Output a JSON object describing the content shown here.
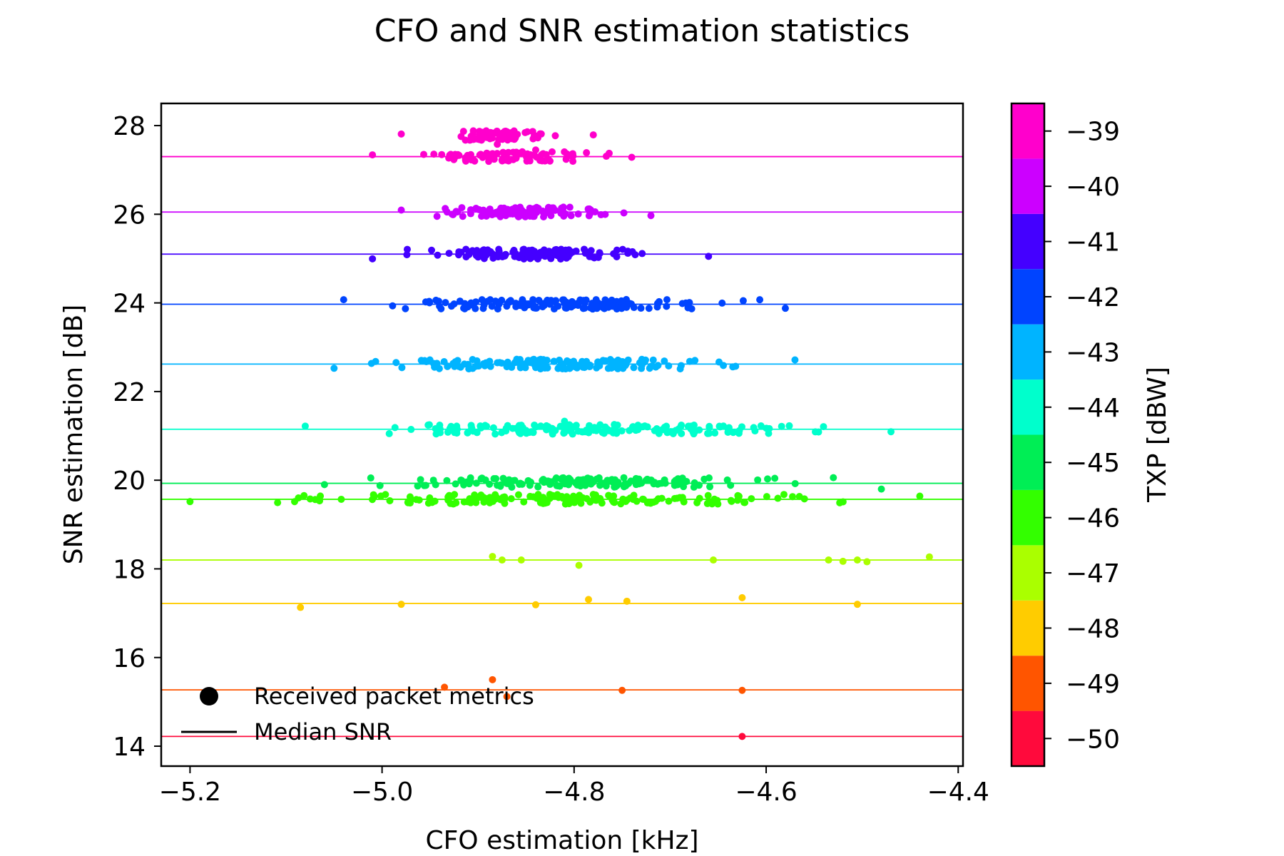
{
  "chart_data": {
    "type": "scatter",
    "title": "CFO and SNR estimation statistics",
    "xlabel": "CFO estimation [kHz]",
    "ylabel": "SNR estimation [dB]",
    "xlim": [
      -5.23,
      -4.395
    ],
    "ylim": [
      13.55,
      28.5
    ],
    "xticks": [
      -5.2,
      -5.0,
      -4.8,
      -4.6,
      -4.4
    ],
    "xtick_labels": [
      "−5.2",
      "−5.0",
      "−4.8",
      "−4.6",
      "−4.4"
    ],
    "yticks": [
      14,
      16,
      18,
      20,
      22,
      24,
      26,
      28
    ],
    "ytick_labels": [
      "14",
      "16",
      "18",
      "20",
      "22",
      "24",
      "26",
      "28"
    ],
    "legend": {
      "position": "lower-left",
      "entries": [
        "Received packet metrics",
        "Median SNR"
      ]
    },
    "colorbar": {
      "label": "TXP [dBW]",
      "range": [
        -50.5,
        -38.5
      ],
      "ticks": [
        -39,
        -40,
        -41,
        -42,
        -43,
        -44,
        -45,
        -46,
        -47,
        -48,
        -49,
        -50
      ],
      "tick_labels": [
        "−39",
        "−40",
        "−41",
        "−42",
        "−43",
        "−44",
        "−45",
        "−46",
        "−47",
        "−48",
        "−49",
        "−50"
      ],
      "levels": [
        {
          "txp": -50,
          "color": "#ff0a3c"
        },
        {
          "txp": -49,
          "color": "#ff5500"
        },
        {
          "txp": -48,
          "color": "#ffcc00"
        },
        {
          "txp": -47,
          "color": "#aaff00"
        },
        {
          "txp": -46,
          "color": "#33ff00"
        },
        {
          "txp": -45,
          "color": "#00ee55"
        },
        {
          "txp": -44,
          "color": "#00ffcc"
        },
        {
          "txp": -43,
          "color": "#00b4ff"
        },
        {
          "txp": -42,
          "color": "#0044ff"
        },
        {
          "txp": -41,
          "color": "#4400ff"
        },
        {
          "txp": -40,
          "color": "#cc00ff"
        },
        {
          "txp": -39,
          "color": "#ff00cc"
        }
      ]
    },
    "series": [
      {
        "txp": -39,
        "median_snr": 27.3,
        "clusters": [
          {
            "y": 27.78,
            "x_min": -4.98,
            "x_max": -4.78,
            "n": 70
          },
          {
            "y": 27.3,
            "x_min": -5.01,
            "x_max": -4.74,
            "n": 90
          }
        ],
        "points": [
          {
            "x": -4.88,
            "y": 27.58
          },
          {
            "x": -4.84,
            "y": 27.45
          }
        ]
      },
      {
        "txp": -40,
        "median_snr": 26.05,
        "clusters": [
          {
            "y": 26.05,
            "x_min": -4.98,
            "x_max": -4.72,
            "n": 110
          }
        ],
        "points": []
      },
      {
        "txp": -41,
        "median_snr": 25.1,
        "clusters": [
          {
            "y": 25.1,
            "x_min": -5.01,
            "x_max": -4.66,
            "n": 130
          }
        ],
        "points": []
      },
      {
        "txp": -42,
        "median_snr": 23.97,
        "clusters": [
          {
            "y": 23.97,
            "x_min": -5.04,
            "x_max": -4.58,
            "n": 150
          }
        ],
        "points": []
      },
      {
        "txp": -43,
        "median_snr": 22.62,
        "clusters": [
          {
            "y": 22.62,
            "x_min": -5.05,
            "x_max": -4.57,
            "n": 160
          }
        ],
        "points": []
      },
      {
        "txp": -44,
        "median_snr": 21.15,
        "clusters": [
          {
            "y": 21.15,
            "x_min": -5.08,
            "x_max": -4.47,
            "n": 170
          }
        ],
        "points": [
          {
            "x": -4.81,
            "y": 21.33
          }
        ]
      },
      {
        "txp": -45,
        "median_snr": 19.93,
        "clusters": [
          {
            "y": 19.95,
            "x_min": -5.06,
            "x_max": -4.53,
            "n": 150
          }
        ],
        "points": [
          {
            "x": -4.48,
            "y": 19.8
          }
        ]
      },
      {
        "txp": -46,
        "median_snr": 19.57,
        "clusters": [
          {
            "y": 19.57,
            "x_min": -5.2,
            "x_max": -4.44,
            "n": 180
          }
        ],
        "points": []
      },
      {
        "txp": -47,
        "median_snr": 18.2,
        "clusters": [],
        "points": [
          {
            "x": -4.885,
            "y": 18.28
          },
          {
            "x": -4.875,
            "y": 18.2
          },
          {
            "x": -4.855,
            "y": 18.2
          },
          {
            "x": -4.795,
            "y": 18.08
          },
          {
            "x": -4.655,
            "y": 18.2
          },
          {
            "x": -4.535,
            "y": 18.2
          },
          {
            "x": -4.52,
            "y": 18.17
          },
          {
            "x": -4.505,
            "y": 18.2
          },
          {
            "x": -4.495,
            "y": 18.16
          },
          {
            "x": -4.43,
            "y": 18.27
          }
        ]
      },
      {
        "txp": -48,
        "median_snr": 17.22,
        "clusters": [],
        "points": [
          {
            "x": -5.085,
            "y": 17.13
          },
          {
            "x": -4.98,
            "y": 17.2
          },
          {
            "x": -4.84,
            "y": 17.19
          },
          {
            "x": -4.785,
            "y": 17.31
          },
          {
            "x": -4.745,
            "y": 17.27
          },
          {
            "x": -4.625,
            "y": 17.35
          },
          {
            "x": -4.505,
            "y": 17.2
          }
        ]
      },
      {
        "txp": -49,
        "median_snr": 15.27,
        "clusters": [],
        "points": [
          {
            "x": -4.935,
            "y": 15.33
          },
          {
            "x": -4.885,
            "y": 15.5
          },
          {
            "x": -4.87,
            "y": 15.12
          },
          {
            "x": -4.75,
            "y": 15.26
          },
          {
            "x": -4.625,
            "y": 15.26
          }
        ]
      },
      {
        "txp": -50,
        "median_snr": 14.22,
        "clusters": [],
        "points": [
          {
            "x": -4.625,
            "y": 14.22
          }
        ]
      }
    ]
  }
}
